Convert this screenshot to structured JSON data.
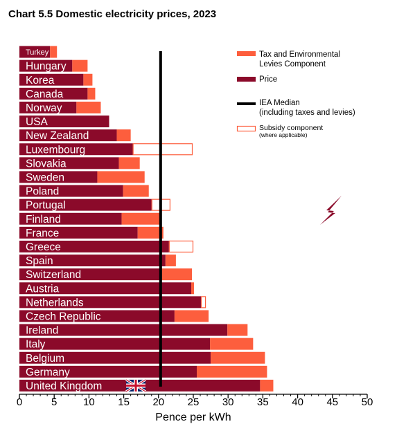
{
  "chart_data": {
    "type": "bar",
    "orientation": "horizontal",
    "stacked": true,
    "title": "Chart 5.5 Domestic electricity prices, 2023",
    "xlabel": "Pence per kWh",
    "ylabel": "",
    "xlim": [
      0,
      50
    ],
    "xticks": [
      "0",
      "5",
      "10",
      "15",
      "20",
      "25",
      "30",
      "35",
      "40",
      "45",
      "50"
    ],
    "grid": false,
    "legend_position": "top-right",
    "median": 20.3,
    "categories": [
      "Turkey",
      "Hungary",
      "Korea",
      "Canada",
      "Norway",
      "USA",
      "New Zealand",
      "Luxembourg",
      "Slovakia",
      "Sweden",
      "Poland",
      "Portugal",
      "Finland",
      "France",
      "Greece",
      "Spain",
      "Switzerland",
      "Austria",
      "Netherlands",
      "Czech Republic",
      "Ireland",
      "Italy",
      "Belgium",
      "Germany",
      "United Kingdom"
    ],
    "series": [
      {
        "name": "Price",
        "color": "#8b0a2a",
        "values": [
          4.4,
          7.6,
          9.2,
          9.8,
          8.2,
          12.9,
          14.0,
          16.3,
          14.3,
          11.2,
          14.9,
          19.0,
          14.7,
          17.0,
          21.5,
          21.0,
          20.5,
          24.7,
          26.1,
          22.3,
          29.9,
          27.4,
          27.5,
          25.5,
          34.6
        ]
      },
      {
        "name": "Tax and Environmental Levies Component",
        "color": "#fd5e3d",
        "values": [
          1.0,
          2.2,
          1.3,
          1.1,
          3.5,
          0.0,
          2.0,
          0.0,
          3.0,
          6.8,
          3.7,
          0.0,
          5.6,
          3.7,
          0.0,
          1.5,
          4.3,
          0.4,
          0.0,
          4.9,
          2.9,
          6.2,
          7.8,
          10.1,
          1.9
        ]
      },
      {
        "name": "Subsidy component (where applicable)",
        "color": "#fd5e3d",
        "values": [
          0,
          0,
          0,
          0,
          0,
          0,
          0,
          8.6,
          0,
          0,
          0,
          2.7,
          0,
          0,
          3.5,
          0,
          0,
          0,
          0.7,
          0,
          0,
          0,
          0,
          0,
          0
        ]
      }
    ],
    "legend": [
      {
        "key": "tax",
        "label": "Tax and Environmental Levies Component",
        "color": "#fd5e3d"
      },
      {
        "key": "price",
        "label": "Price",
        "color": "#8b0a2a"
      },
      {
        "key": "median",
        "label": "IEA Median (including taxes and levies)",
        "color": "#000000"
      },
      {
        "key": "subsidy",
        "label": "Subsidy component",
        "sublabel": "(where applicable)",
        "color": "#fd5e3d"
      }
    ],
    "icons": [
      "lightning-bolt-icon",
      "union-jack-flag-icon"
    ]
  }
}
